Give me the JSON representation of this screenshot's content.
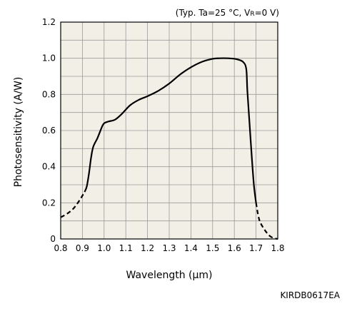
{
  "chart_data": {
    "type": "line",
    "conditions": {
      "prefix": "(Typ. Ta=25 °C, V",
      "sub": "R",
      "suffix": "=0 V)"
    },
    "xlabel": "Wavelength (μm)",
    "ylabel": "Photosensitivity (A/W)",
    "xlim": [
      0.8,
      1.8
    ],
    "ylim": [
      0,
      1.2
    ],
    "x_ticks": [
      "0.8",
      "0.9",
      "1.0",
      "1.1",
      "1.2",
      "1.3",
      "1.4",
      "1.5",
      "1.6",
      "1.7",
      "1.8"
    ],
    "y_ticks": [
      "0",
      "0.2",
      "0.4",
      "0.6",
      "0.8",
      "1.0",
      "1.2"
    ],
    "grid": true,
    "plot_background": "#f2f0e6",
    "line_color": "#000000",
    "series": [
      {
        "segments": [
          {
            "style": "dashed",
            "points": [
              [
                0.8,
                0.12
              ],
              [
                0.83,
                0.14
              ],
              [
                0.86,
                0.17
              ],
              [
                0.89,
                0.22
              ],
              [
                0.91,
                0.26
              ]
            ]
          },
          {
            "style": "solid",
            "points": [
              [
                0.91,
                0.26
              ],
              [
                0.92,
                0.29
              ],
              [
                0.93,
                0.36
              ],
              [
                0.94,
                0.45
              ],
              [
                0.95,
                0.51
              ],
              [
                0.97,
                0.56
              ],
              [
                0.99,
                0.62
              ],
              [
                1.0,
                0.64
              ],
              [
                1.02,
                0.65
              ],
              [
                1.05,
                0.66
              ],
              [
                1.08,
                0.69
              ],
              [
                1.12,
                0.74
              ],
              [
                1.16,
                0.77
              ],
              [
                1.2,
                0.79
              ],
              [
                1.25,
                0.82
              ],
              [
                1.3,
                0.86
              ],
              [
                1.35,
                0.91
              ],
              [
                1.4,
                0.95
              ],
              [
                1.45,
                0.98
              ],
              [
                1.5,
                0.997
              ],
              [
                1.53,
                1.0
              ],
              [
                1.57,
                1.0
              ],
              [
                1.61,
                0.995
              ],
              [
                1.64,
                0.98
              ],
              [
                1.655,
                0.94
              ],
              [
                1.66,
                0.82
              ],
              [
                1.67,
                0.64
              ],
              [
                1.68,
                0.46
              ],
              [
                1.69,
                0.3
              ],
              [
                1.7,
                0.2
              ]
            ]
          },
          {
            "style": "dashed",
            "points": [
              [
                1.7,
                0.2
              ],
              [
                1.71,
                0.13
              ],
              [
                1.72,
                0.09
              ],
              [
                1.74,
                0.05
              ],
              [
                1.76,
                0.02
              ],
              [
                1.78,
                0.005
              ],
              [
                1.8,
                0.0
              ]
            ]
          }
        ]
      }
    ]
  },
  "document_code": "KIRDB0617EA"
}
